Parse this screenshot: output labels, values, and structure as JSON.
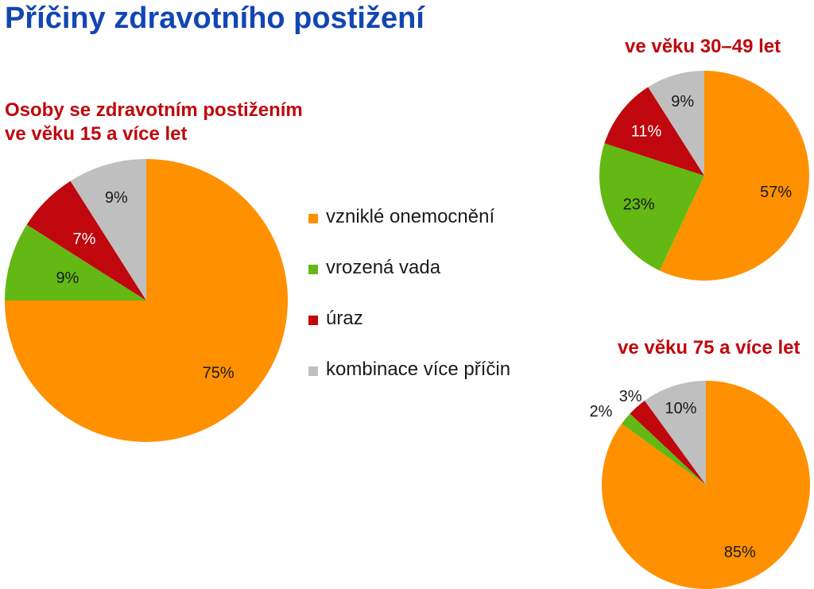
{
  "page": {
    "title": "Příčiny zdravotního postižení"
  },
  "legend": {
    "items": [
      {
        "label": "vzniklé onemocnění",
        "color": "#ff9000"
      },
      {
        "label": "vrozená vada",
        "color": "#63b814"
      },
      {
        "label": "úraz",
        "color": "#c0070d"
      },
      {
        "label": "kombinace více příčin",
        "color": "#bfbfbf"
      }
    ]
  },
  "chart_data": [
    {
      "type": "pie",
      "title_lines": [
        "Osoby se zdravotním postižením",
        "ve věku 15 a více let"
      ],
      "categories": [
        "vzniklé onemocnění",
        "vrozená vada",
        "úraz",
        "kombinace více příčin"
      ],
      "values": [
        75,
        9,
        7,
        9
      ],
      "labels": [
        "75%",
        "9%",
        "7%",
        "9%"
      ],
      "colors": [
        "#ff9000",
        "#63b814",
        "#c0070d",
        "#bfbfbf"
      ]
    },
    {
      "type": "pie",
      "title_lines": [
        "ve věku 30–49 let"
      ],
      "categories": [
        "vzniklé onemocnění",
        "vrozená vada",
        "úraz",
        "kombinace více příčin"
      ],
      "values": [
        57,
        23,
        11,
        9
      ],
      "labels": [
        "57%",
        "23%",
        "11%",
        "9%"
      ],
      "colors": [
        "#ff9000",
        "#63b814",
        "#c0070d",
        "#bfbfbf"
      ]
    },
    {
      "type": "pie",
      "title_lines": [
        "ve věku 75 a více let"
      ],
      "categories": [
        "vzniklé onemocnění",
        "vrozená vada",
        "úraz",
        "kombinace více příčin"
      ],
      "values": [
        85,
        2,
        3,
        10
      ],
      "labels": [
        "85%",
        "2%",
        "3%",
        "10%"
      ],
      "colors": [
        "#ff9000",
        "#63b814",
        "#c0070d",
        "#bfbfbf"
      ]
    }
  ]
}
